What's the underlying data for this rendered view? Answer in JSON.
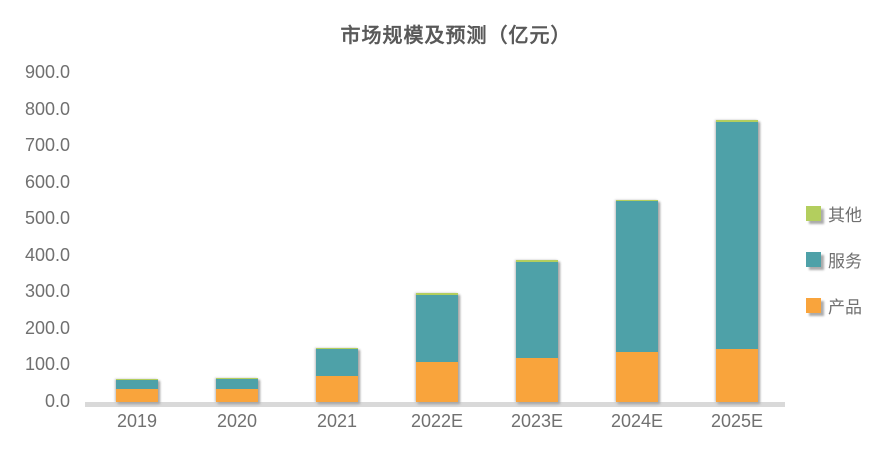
{
  "title": "市场规模及预测（亿元）",
  "chart_data": {
    "type": "bar",
    "stacked": true,
    "title": "市场规模及预测（亿元）",
    "categories": [
      "2019",
      "2020",
      "2021",
      "2022E",
      "2023E",
      "2024E",
      "2025E"
    ],
    "series": [
      {
        "name": "产品",
        "color": "#F9A43C",
        "values": [
          35,
          36,
          71,
          110,
          121,
          138,
          146
        ]
      },
      {
        "name": "服务",
        "color": "#4EA1A8",
        "values": [
          26,
          28,
          74,
          182,
          262,
          411,
          621
        ]
      },
      {
        "name": "其他",
        "color": "#B3CE5E",
        "values": [
          3,
          3,
          4,
          5,
          5,
          5,
          5
        ]
      }
    ],
    "ylim": [
      0,
      900
    ],
    "ytick_labels": [
      "900.0",
      "800.0",
      "700.0",
      "600.0",
      "500.0",
      "400.0",
      "300.0",
      "200.0",
      "100.0",
      "0.0"
    ],
    "xlabel": "",
    "ylabel": "",
    "grid": false,
    "legend_position": "right",
    "legend_top_to_bottom": [
      "其他",
      "服务",
      "产品"
    ]
  },
  "colors": {
    "accent_orange": "#F9A43C",
    "accent_teal": "#4EA1A8",
    "accent_green": "#B3CE5E",
    "axis_line": "#D9D9D9",
    "text_gray": "#707070",
    "title_gray": "#595959",
    "shadow_gray": "#ABABAB"
  }
}
